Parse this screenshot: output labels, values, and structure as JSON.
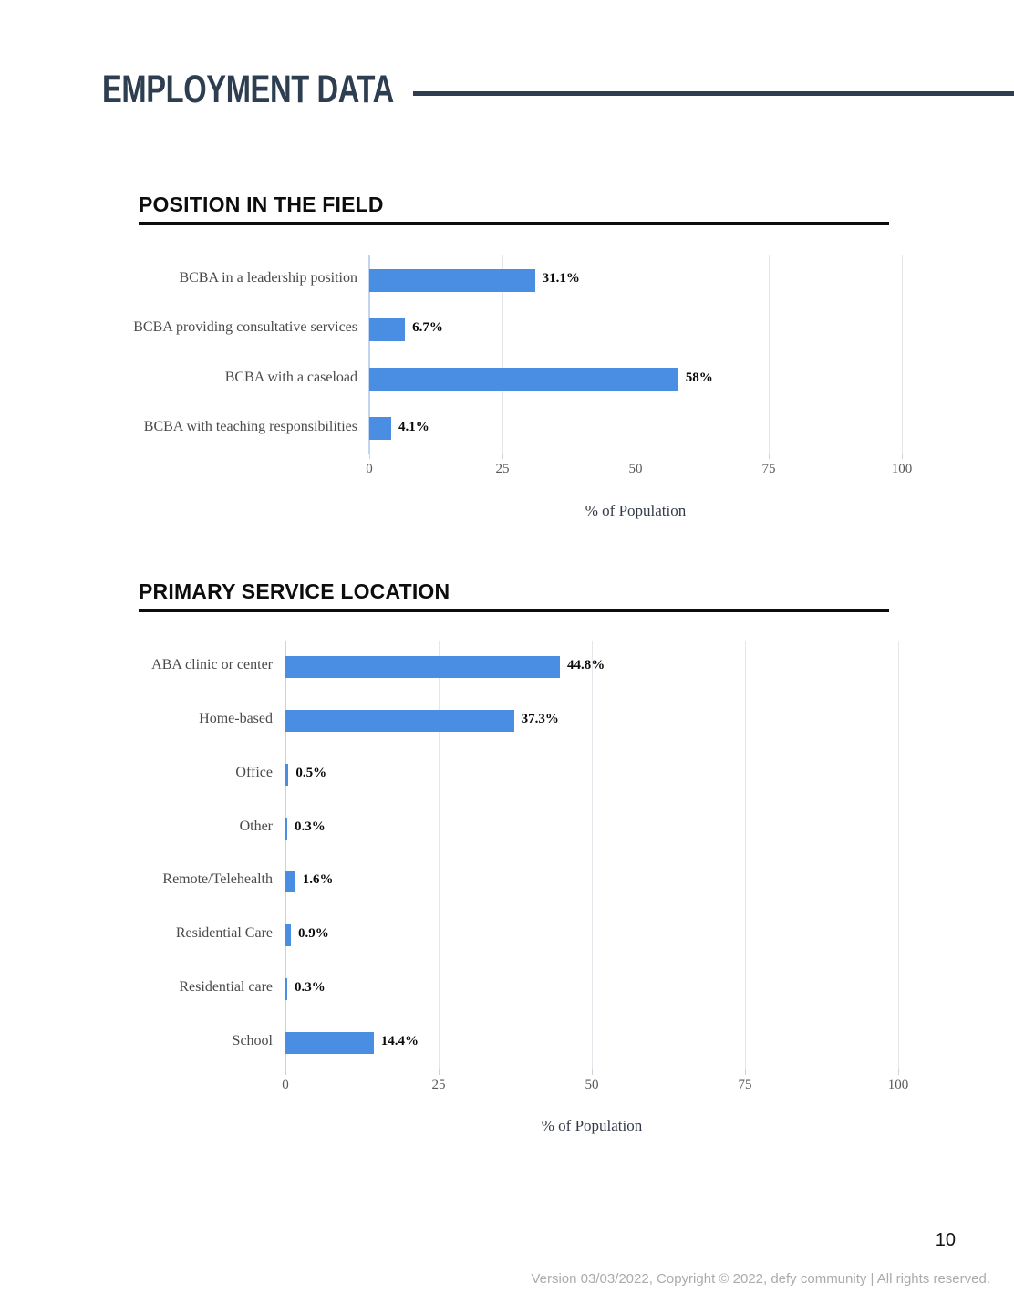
{
  "page": {
    "header_title": "EMPLOYMENT DATA",
    "page_number": "10",
    "footer": "Version 03/03/2022, Copyright © 2022, defy community | All rights reserved."
  },
  "colors": {
    "header_navy": "#2d3e50",
    "bar_blue": "#4a8ee4",
    "gridline_gray": "#e3e6eb",
    "zero_line_blue": "#c3d4f0",
    "category_label_gray": "#4a4a4a",
    "tick_label_gray": "#595959"
  },
  "chart_data": [
    {
      "type": "bar",
      "orientation": "horizontal",
      "section_title": "POSITION IN THE FIELD",
      "categories": [
        "BCBA in a leadership position",
        "BCBA providing consultative services",
        "BCBA with a caseload",
        "BCBA with teaching responsibilities"
      ],
      "values": [
        31.1,
        6.7,
        58,
        4.1
      ],
      "value_labels": [
        "31.1%",
        "6.7%",
        "58%",
        "4.1%"
      ],
      "xlabel": "% of Population",
      "xlim": [
        0,
        100
      ],
      "xticks": [
        0,
        25,
        50,
        75,
        100
      ],
      "grid": true,
      "legend": false
    },
    {
      "type": "bar",
      "orientation": "horizontal",
      "section_title": "PRIMARY SERVICE LOCATION",
      "categories": [
        "ABA clinic or center",
        "Home-based",
        "Office",
        "Other",
        "Remote/Telehealth",
        "Residential Care",
        "Residential care",
        "School"
      ],
      "values": [
        44.8,
        37.3,
        0.5,
        0.3,
        1.6,
        0.9,
        0.3,
        14.4
      ],
      "value_labels": [
        "44.8%",
        "37.3%",
        "0.5%",
        "0.3%",
        "1.6%",
        "0.9%",
        "0.3%",
        "14.4%"
      ],
      "xlabel": "% of Population",
      "xlim": [
        0,
        100
      ],
      "xticks": [
        0,
        25,
        50,
        75,
        100
      ],
      "grid": true,
      "legend": false
    }
  ]
}
